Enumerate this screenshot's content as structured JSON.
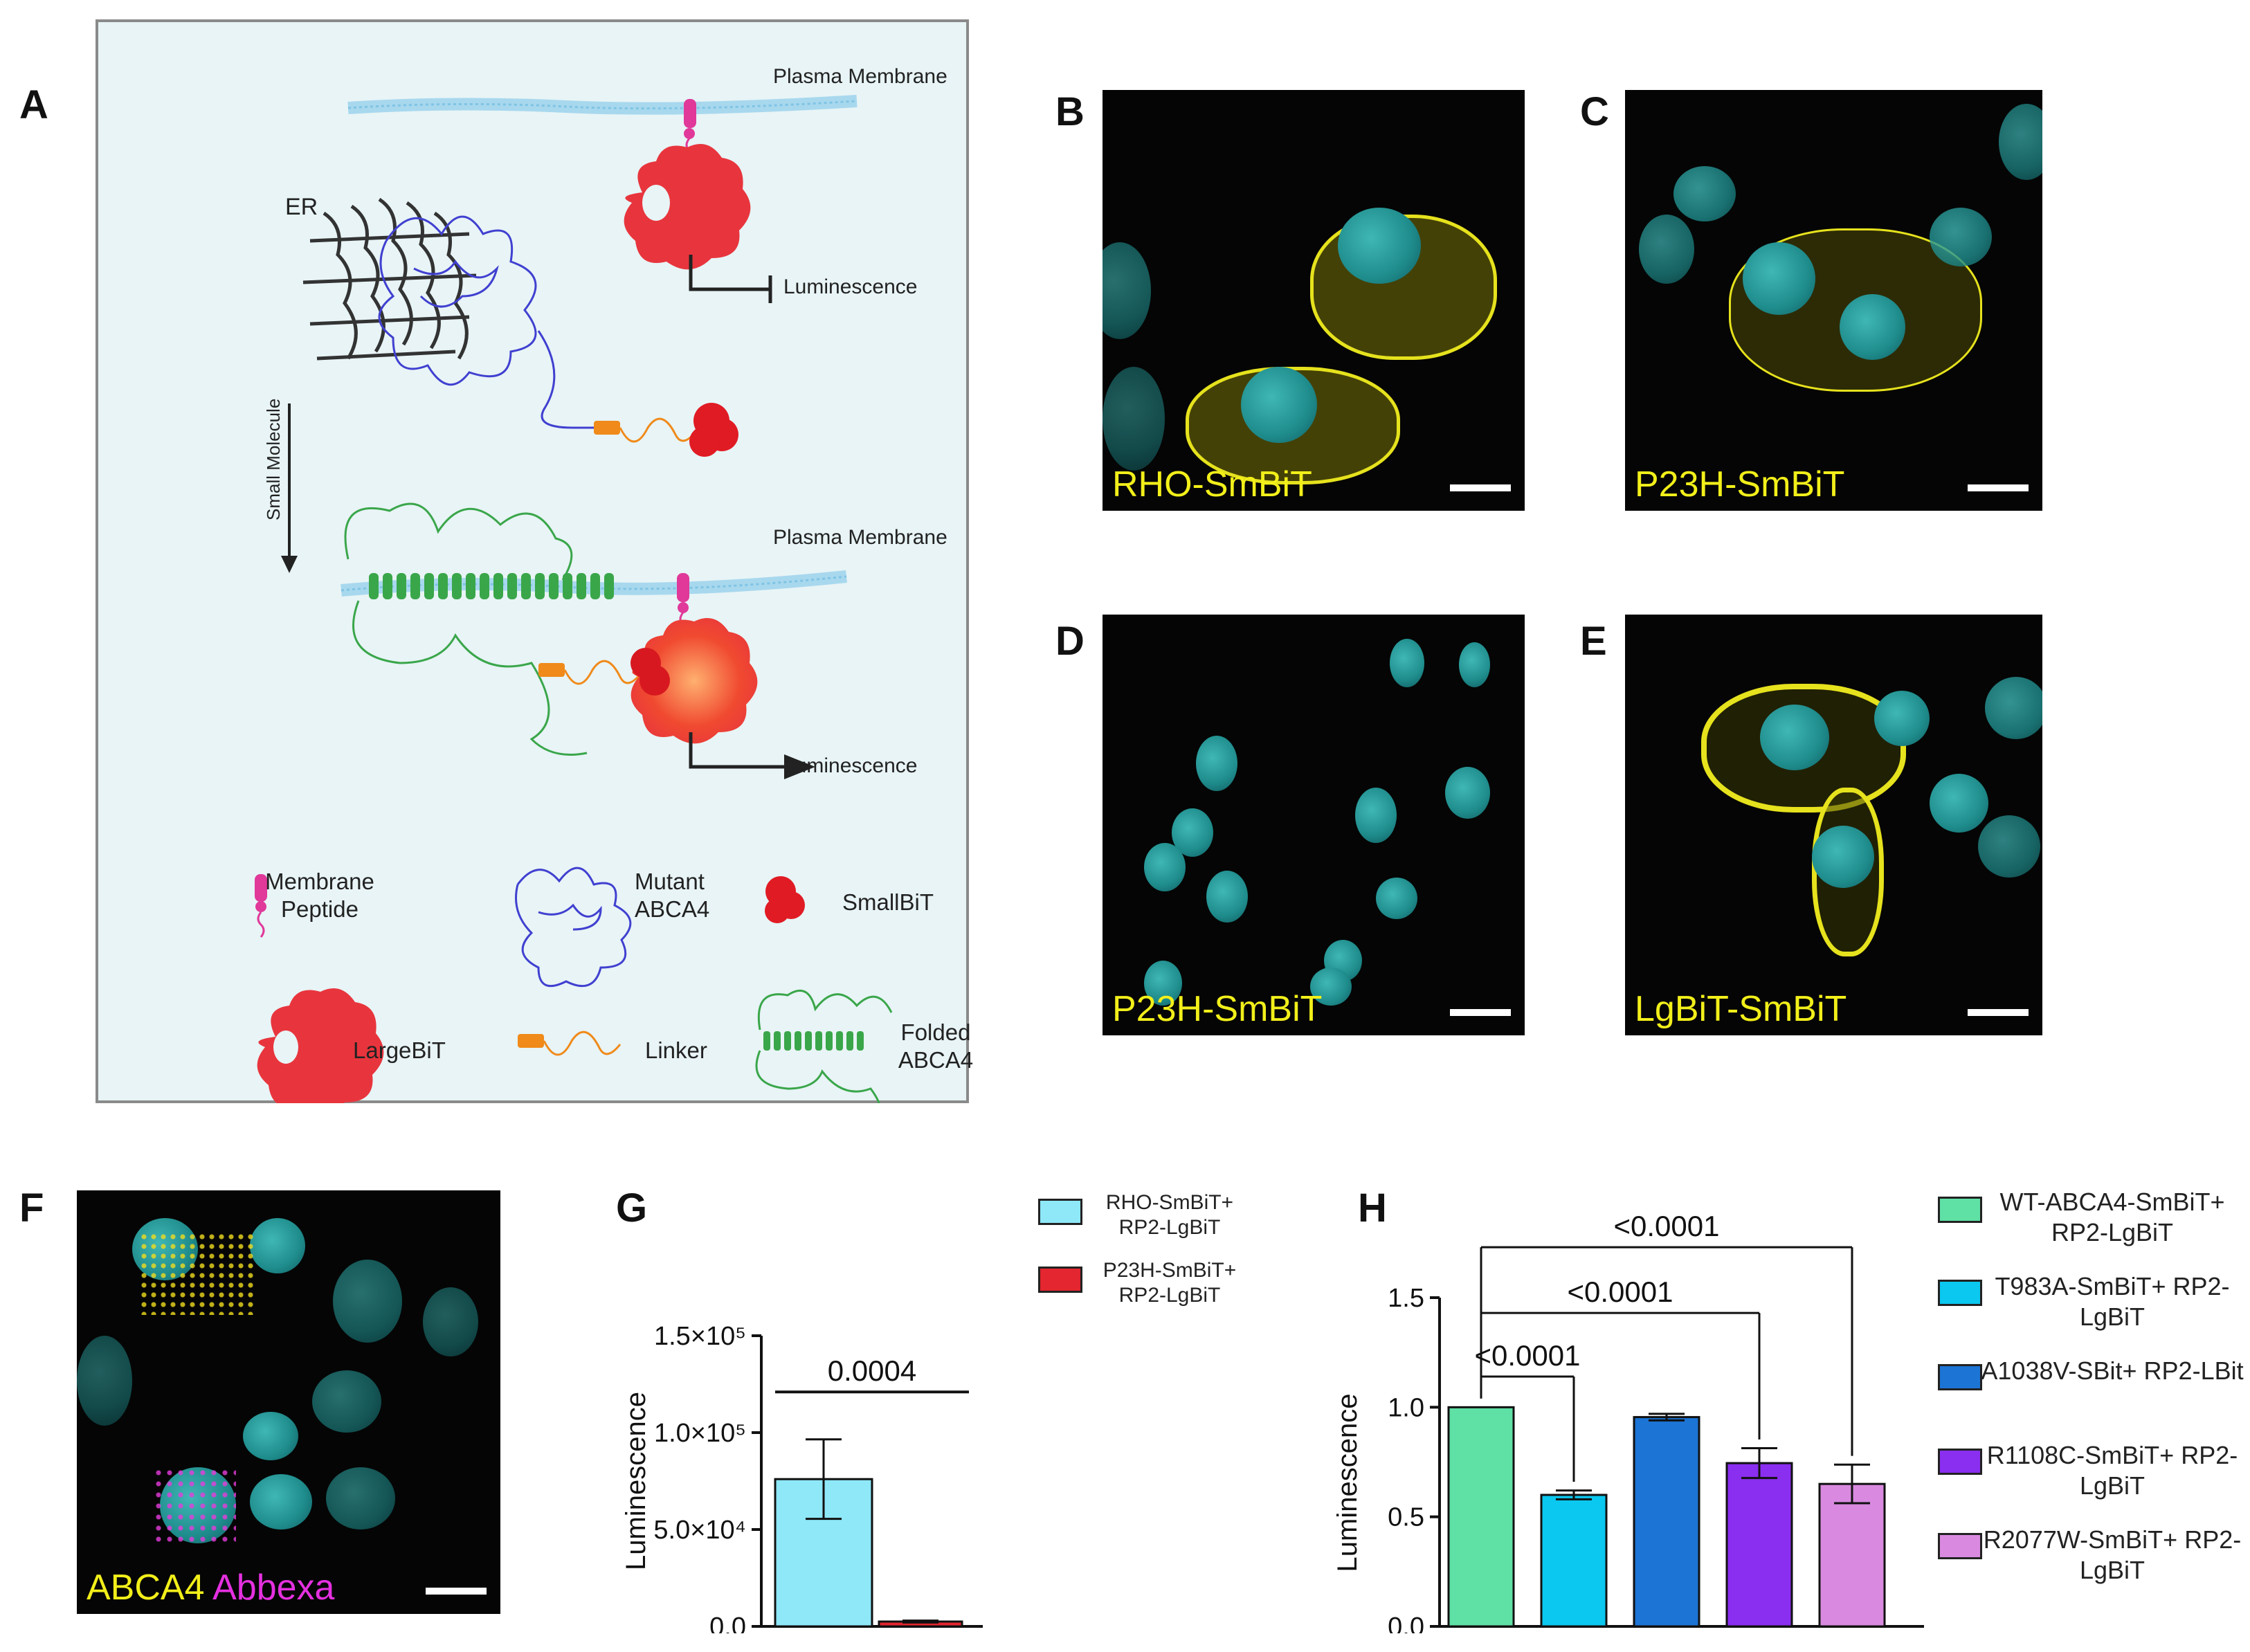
{
  "panels": {
    "A": "A",
    "B": "B",
    "C": "C",
    "D": "D",
    "E": "E",
    "F": "F",
    "G": "G",
    "H": "H"
  },
  "diagram": {
    "plasma_membrane_top": "Plasma Membrane",
    "plasma_membrane_bottom": "Plasma Membrane",
    "er": "ER",
    "luminescence_top": "Luminescence",
    "luminescence_bottom": "Luminescence",
    "small_molecule": "Small Molecule",
    "legend": {
      "membrane_peptide": "Membrane\nPeptide",
      "mutant_abca4": "Mutant\nABCA4",
      "smallbit": "SmallBiT",
      "largebit": "LargeBiT",
      "linker": "Linker",
      "folded_abca4": "Folded\nABCA4"
    },
    "colors": {
      "background": "#e8f4f6",
      "membrane": "#a8d8ee",
      "largebit": "#e8353d",
      "smallbit": "#e01b24",
      "peptide": "#e0399a",
      "mutant": "#4040d0",
      "folded": "#3aa64a",
      "linker": "#f08a1a"
    }
  },
  "micrographs": {
    "B": "RHO-SmBiT",
    "C": "P23H-SmBiT",
    "D": "P23H-SmBiT",
    "E": "LgBiT-SmBiT",
    "F_label_a": "ABCA4",
    "F_label_b": "Abbexa"
  },
  "chart_data": [
    {
      "panel": "G",
      "type": "bar",
      "ylabel": "Luminescence",
      "ylim": [
        0,
        150000
      ],
      "yticks": [
        "0.0",
        "5.0×10⁴",
        "1.0×10⁵",
        "1.5×10⁵"
      ],
      "series": [
        {
          "name": "RHO-SmBiT+ RP2-LgBiT",
          "value": 76000,
          "error": 20500,
          "color": "#8ee8f8"
        },
        {
          "name": "P23H-SmBiT+ RP2-LgBiT",
          "value": 2500,
          "error": 500,
          "color": "#e3262f"
        }
      ],
      "annotation": "0.0004"
    },
    {
      "panel": "H",
      "type": "bar",
      "ylabel": "Luminescence",
      "ylim": [
        0,
        1.5
      ],
      "yticks": [
        "0.0",
        "0.5",
        "1.0",
        "1.5"
      ],
      "series": [
        {
          "name": "WT-ABCA4-SmBiT+ RP2-LgBiT",
          "value": 1.0,
          "error": 0,
          "color": "#5fe0a5"
        },
        {
          "name": "T983A-SmBiT+ RP2-LgBiT",
          "value": 0.6,
          "error": 0.02,
          "color": "#0ac8f0"
        },
        {
          "name": "A1038V-SBit+ RP2-LBit",
          "value": 0.955,
          "error": 0.015,
          "color": "#1c74d4"
        },
        {
          "name": "R1108C-SmBiT+ RP2-LgBiT",
          "value": 0.745,
          "error": 0.068,
          "color": "#8a2ef0"
        },
        {
          "name": "R2077W-SmBiT+ RP2-LgBiT",
          "value": 0.65,
          "error": 0.088,
          "color": "#d98ae0"
        }
      ],
      "comparisons": [
        "<0.0001",
        "<0.0001",
        "<0.0001"
      ]
    }
  ]
}
